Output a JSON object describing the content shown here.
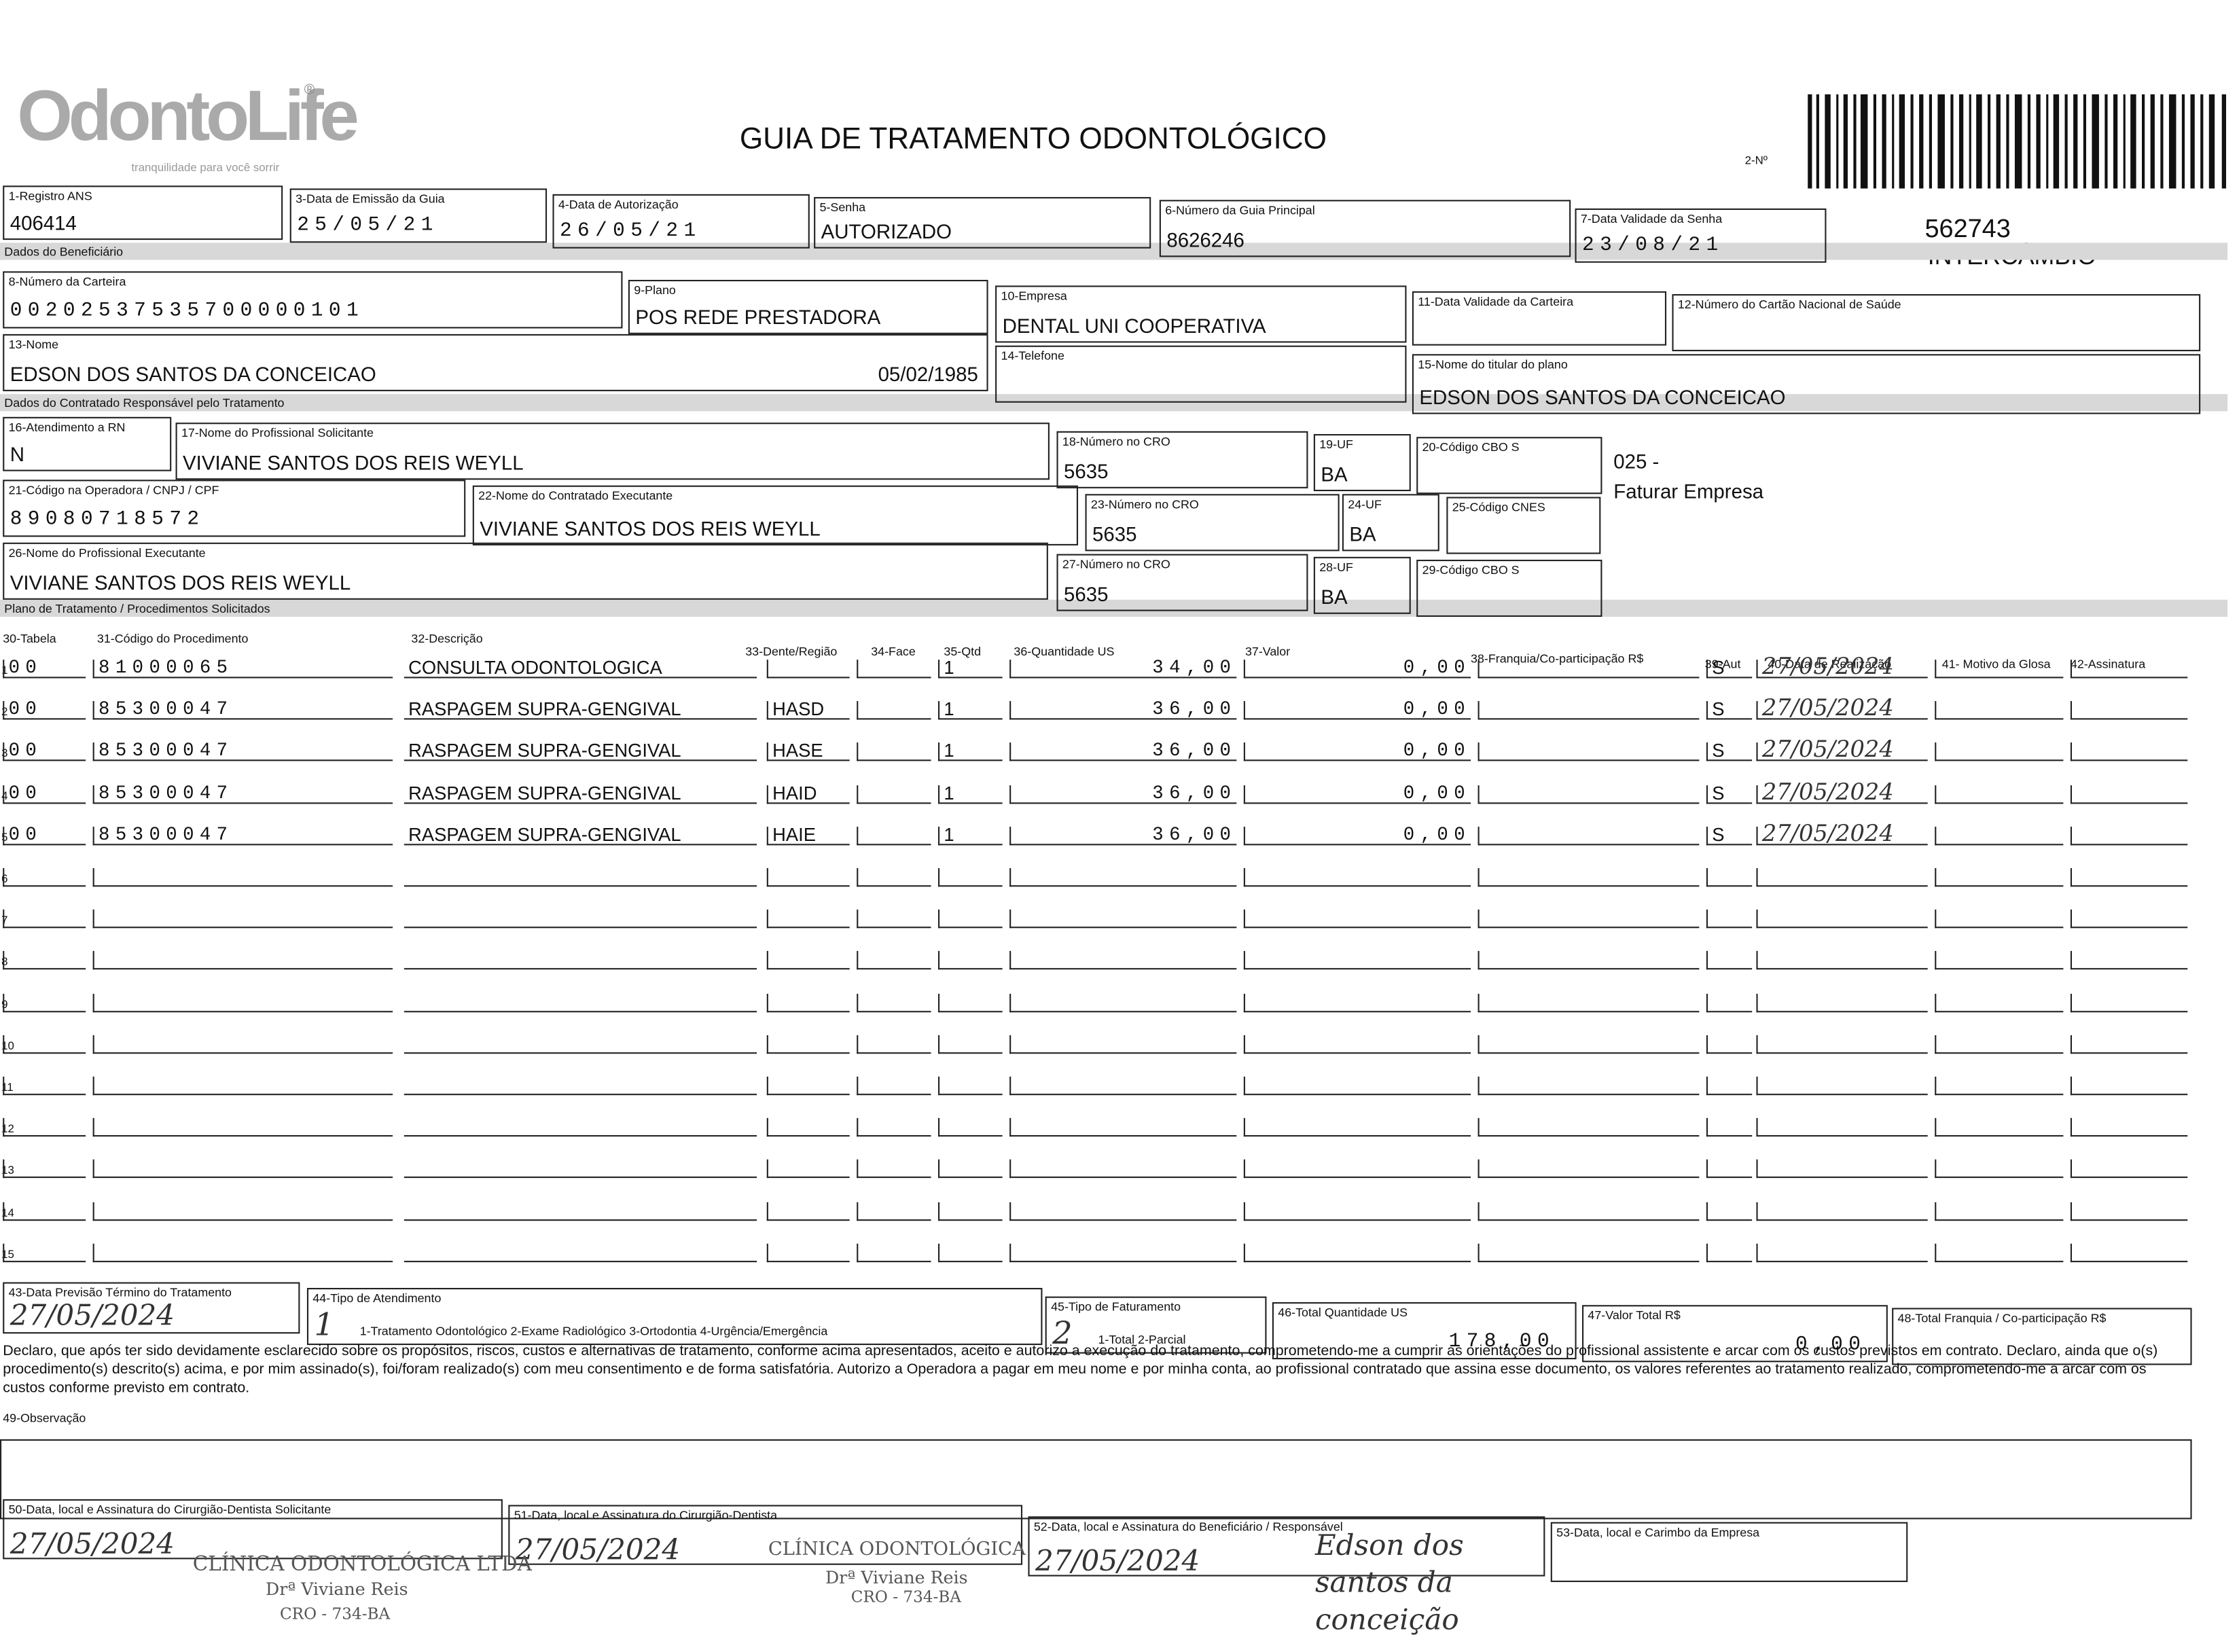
{
  "header": {
    "logo": "OdontoLife",
    "logo_mark": "®",
    "tagline": "tranquilidade para você sorrir",
    "title": "GUIA DE TRATAMENTO ODONTOLÓGICO",
    "number_label": "2-Nº",
    "guide_number": "562743",
    "intercambio": "INTERCÂMBIO",
    "note_code": "025 -",
    "note_text": "Faturar Empresa"
  },
  "sections": [
    "Dados do Beneficiário",
    "Dados do Contratado Responsável pelo Tratamento",
    "Plano de Tratamento / Procedimentos Solicitados"
  ],
  "fields": [
    {
      "label": "1-Registro ANS",
      "value": "406414"
    },
    {
      "label": "3-Data de Emissão da Guia",
      "value": "25/05/21"
    },
    {
      "label": "4-Data de Autorização",
      "value": "26/05/21"
    },
    {
      "label": "5-Senha",
      "value": "AUTORIZADO"
    },
    {
      "label": "6-Número da Guia Principal",
      "value": "8626246"
    },
    {
      "label": "7-Data Validade da Senha",
      "value": "23/08/21"
    },
    {
      "label": "8-Número da Carteira",
      "value": "00202537535700000101"
    },
    {
      "label": "9-Plano",
      "value": "POS REDE PRESTADORA"
    },
    {
      "label": "10-Empresa",
      "value": "DENTAL UNI  COOPERATIVA"
    },
    {
      "label": "11-Data Validade da Carteira"
    },
    {
      "label": "12-Número do Cartão Nacional de Saúde"
    },
    {
      "label": "13-Nome",
      "value": "EDSON DOS SANTOS DA CONCEICAO",
      "extra": "05/02/1985"
    },
    {
      "label": "14-Telefone"
    },
    {
      "label": "15-Nome do titular do plano",
      "value": "EDSON DOS SANTOS DA CONCEICAO"
    },
    {
      "label": "16-Atendimento a RN",
      "value": "N"
    },
    {
      "label": "17-Nome do Profissional Solicitante",
      "value": "VIVIANE SANTOS DOS REIS WEYLL"
    },
    {
      "label": "18-Número no CRO",
      "value": "5635"
    },
    {
      "label": "19-UF",
      "value": "BA"
    },
    {
      "label": "20-Código CBO S"
    },
    {
      "label": "21-Código na Operadora / CNPJ / CPF",
      "value": "89080718572"
    },
    {
      "label": "22-Nome do Contratado Executante",
      "value": "VIVIANE SANTOS DOS REIS WEYLL"
    },
    {
      "label": "23-Número no CRO",
      "value": "5635"
    },
    {
      "label": "24-UF",
      "value": "BA"
    },
    {
      "label": "25-Código CNES"
    },
    {
      "label": "26-Nome do Profissional Executante",
      "value": "VIVIANE SANTOS DOS REIS WEYLL"
    },
    {
      "label": "27-Número no CRO",
      "value": "5635"
    },
    {
      "label": "28-UF",
      "value": "BA"
    },
    {
      "label": "29-Código CBO S"
    }
  ],
  "table": {
    "headers": {
      "tabela": "30-Tabela",
      "codigo": "31-Código do Procedimento",
      "descricao": "32-Descrição",
      "dente": "33-Dente/Região",
      "face": "34-Face",
      "qtd": "35-Qtd",
      "qtd_us": "36-Quantidade US",
      "valor": "37-Valor",
      "franquia": "38-Franquia/Co-participação R$",
      "aut": "39-Aut",
      "data": "40-Data de Realização",
      "motivo": "41- Motivo da Glosa",
      "assinatura": "42-Assinatura"
    },
    "rows": [
      {
        "n": 1,
        "tabela": "00",
        "codigo": "81000065",
        "descricao": "CONSULTA ODONTOLOGICA",
        "qtd": "1",
        "qtd_us": "34,00",
        "valor": "0,00",
        "aut": "S",
        "data": "27/05/2024"
      },
      {
        "n": 2,
        "tabela": "00",
        "codigo": "85300047",
        "descricao": "RASPAGEM SUPRA-GENGIVAL",
        "dente": "HASD",
        "qtd": "1",
        "qtd_us": "36,00",
        "valor": "0,00",
        "aut": "S",
        "data": "27/05/2024"
      },
      {
        "n": 3,
        "tabela": "00",
        "codigo": "85300047",
        "descricao": "RASPAGEM SUPRA-GENGIVAL",
        "dente": "HASE",
        "qtd": "1",
        "qtd_us": "36,00",
        "valor": "0,00",
        "aut": "S",
        "data": "27/05/2024"
      },
      {
        "n": 4,
        "tabela": "00",
        "codigo": "85300047",
        "descricao": "RASPAGEM SUPRA-GENGIVAL",
        "dente": "HAID",
        "qtd": "1",
        "qtd_us": "36,00",
        "valor": "0,00",
        "aut": "S",
        "data": "27/05/2024"
      },
      {
        "n": 5,
        "tabela": "00",
        "codigo": "85300047",
        "descricao": "RASPAGEM SUPRA-GENGIVAL",
        "dente": "HAIE",
        "qtd": "1",
        "qtd_us": "36,00",
        "valor": "0,00",
        "aut": "S",
        "data": "27/05/2024"
      },
      {
        "n": 6
      },
      {
        "n": 7
      },
      {
        "n": 8
      },
      {
        "n": 9
      },
      {
        "n": 10
      },
      {
        "n": 11
      },
      {
        "n": 12
      },
      {
        "n": 13
      },
      {
        "n": 14
      },
      {
        "n": 15
      }
    ]
  },
  "footer_fields": [
    {
      "label": "43-Data Previsão Término do Tratamento",
      "value": "27/05/2024"
    },
    {
      "label": "44-Tipo de Atendimento",
      "value": "1",
      "options": "1-Tratamento Odontológico 2-Exame Radiológico 3-Ortodontia 4-Urgência/Emergência"
    },
    {
      "label": "45-Tipo de Faturamento",
      "value": "2",
      "options": "1-Total 2-Parcial"
    },
    {
      "label": "46-Total Quantidade US",
      "value": "178,00"
    },
    {
      "label": "47-Valor Total R$",
      "value": "0,00"
    },
    {
      "label": "48-Total Franquia / Co-participação R$"
    }
  ],
  "declaration": "Declaro, que após ter sido devidamente esclarecido sobre os propósitos, riscos, custos e alternativas de tratamento, conforme acima apresentados, aceito e autorizo a execução do tratamento, comprometendo-me a cumprir as orientações do profissional assistente e arcar com os custos previstos em contrato. Declaro, ainda que o(s) procedimento(s) descrito(s) acima, e por mim assinado(s), foi/foram realizado(s) com meu consentimento e de forma satisfatória. Autorizo a Operadora a pagar em meu nome e por minha conta, ao profissional contratado que assina esse documento, os valores referentes ao tratamento realizado, comprometendo-me a arcar com os custos conforme previsto em contrato.",
  "observation_label": "49-Observação",
  "signatures": [
    {
      "label": "50-Data, local e Assinatura do Cirurgião-Dentista Solicitante",
      "value": "27/05/2024"
    },
    {
      "label": "51-Data, local e Assinatura do Cirurgião-Dentista",
      "value": "27/05/2024"
    },
    {
      "label": "52-Data, local e Assinatura do Beneficiário / Responsável",
      "value": "27/05/2024",
      "extra": "Edson dos santos da conceição"
    },
    {
      "label": "53-Data, local e Carimbo da Empresa"
    }
  ],
  "stamps": [
    "CLÍNICA ODONTOLÓGICA LTDA",
    "Drª Viviane Reis",
    "CRO - 734-BA",
    "CLÍNICA ODONTOLÓGICA",
    "Drª Viviane Reis",
    "CRO - 734-BA"
  ]
}
